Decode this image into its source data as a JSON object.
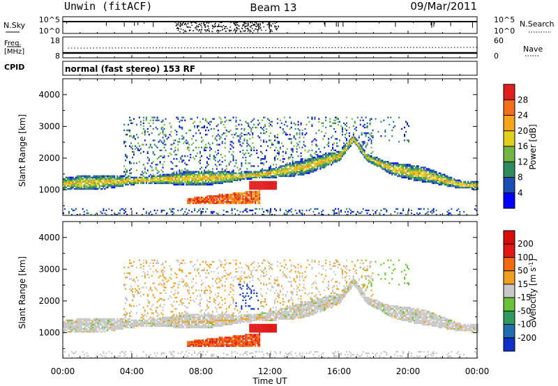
{
  "header": {
    "station": "Unwin (fitACF)",
    "beam": "Beam 13",
    "date": "09/Mar/2011",
    "cpid_label": "CPID",
    "cpid_value": "normal (fast stereo) 153 RF"
  },
  "noise_panel": {
    "left_label": "N.Sky",
    "right_label": "N.Search",
    "left_ticks": [
      "10^5",
      "10^0"
    ],
    "right_ticks": [
      "10^5",
      "10^0"
    ]
  },
  "freq_panel": {
    "left_label_1": "Freq.",
    "left_label_2": "[MHz]",
    "right_label": "Nave",
    "left_ticks": [
      "18",
      "8"
    ],
    "right_ticks": [
      "60",
      "0"
    ]
  },
  "chart_data": [
    {
      "type": "heatmap",
      "name": "power",
      "ylabel": "Slant Range [km]",
      "xlabel": "Time UT",
      "x_ticks": [
        "00:00",
        "04:00",
        "08:00",
        "12:00",
        "16:00",
        "20:00",
        "00:00"
      ],
      "xlim_hours": [
        0,
        24
      ],
      "ylim_km": [
        200,
        4500
      ],
      "y_ticks": [
        "1000",
        "2000",
        "3000",
        "4000"
      ],
      "y_tick_values": [
        1000,
        2000,
        3000,
        4000
      ],
      "colorbar": {
        "label": "Power [dB]",
        "ticks": [
          "4",
          "8",
          "12",
          "16",
          "20",
          "24",
          "28"
        ],
        "colors": [
          "#0000ff",
          "#1d4fb2",
          "#2f8a5e",
          "#72b542",
          "#e3cf1e",
          "#f4a51d",
          "#f36f1b",
          "#e02020"
        ]
      }
    },
    {
      "type": "heatmap",
      "name": "velocity",
      "ylabel": "Slant Range [km]",
      "xlabel": "Time UT",
      "x_ticks": [
        "00:00",
        "04:00",
        "08:00",
        "12:00",
        "16:00",
        "20:00",
        "00:00"
      ],
      "xlim_hours": [
        0,
        24
      ],
      "ylim_km": [
        200,
        4500
      ],
      "y_ticks": [
        "1000",
        "2000",
        "3000",
        "4000"
      ],
      "y_tick_values": [
        1000,
        2000,
        3000,
        4000
      ],
      "colorbar": {
        "label": "Velocity [m s^-1]",
        "ticks": [
          "200",
          "100",
          "50",
          "15",
          "-15",
          "-50",
          "-100",
          "-200"
        ],
        "colors": [
          "#1030c8",
          "#1f6fb0",
          "#2f9a60",
          "#6ac23a",
          "#c8c8c8",
          "#f0a020",
          "#f06a10",
          "#e01818",
          "#d80c0c"
        ]
      }
    }
  ],
  "time_axis": {
    "label": "Time UT",
    "ticks": [
      "00:00",
      "04:00",
      "08:00",
      "12:00",
      "16:00",
      "20:00",
      "00:00"
    ]
  },
  "echo_regions": {
    "main_band": [
      [
        0,
        1180
      ],
      [
        2,
        1220
      ],
      [
        4,
        1270
      ],
      [
        6,
        1320
      ],
      [
        8,
        1350
      ],
      [
        10,
        1400
      ],
      [
        12,
        1500
      ],
      [
        14,
        1700
      ],
      [
        16,
        2050
      ],
      [
        16.8,
        2600
      ],
      [
        17.6,
        2000
      ],
      [
        19,
        1650
      ],
      [
        21,
        1450
      ],
      [
        23,
        1150
      ],
      [
        24,
        1120
      ]
    ],
    "cusp": {
      "start": 16,
      "peak": 16.8,
      "end": 17.6
    },
    "lower_patch": {
      "x0": 7.2,
      "x1": 11.4,
      "y0": 520,
      "y1": 720
    },
    "red_patch": {
      "x0": 10.8,
      "x1": 12.4,
      "y0": 1000,
      "y1": 1250
    }
  }
}
